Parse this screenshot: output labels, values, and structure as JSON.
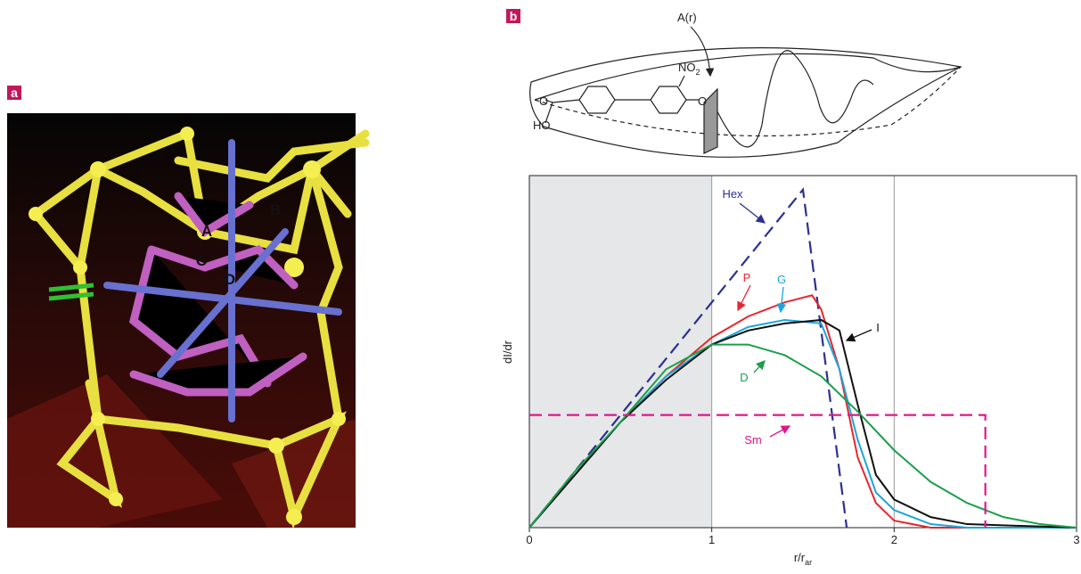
{
  "panel_a": {
    "label": "a",
    "sites": [
      "A",
      "B",
      "C",
      "D"
    ]
  },
  "panel_b": {
    "label": "b",
    "molecule": {
      "section_label": "A(r)",
      "nitro": {
        "main": "NO",
        "subscript": "2"
      },
      "ether_oxygen": "O",
      "carbonyl_oxygen": "O",
      "hydroxyl": "HO"
    },
    "chart_data": {
      "type": "line",
      "ylabel": "dI/dr",
      "xlabel": {
        "main": "r/r",
        "subscript": "ar"
      },
      "xlim": [
        0,
        3
      ],
      "ylim": [
        0,
        1
      ],
      "xticks": [
        0,
        1,
        2,
        3
      ],
      "grid": true,
      "shaded_xrange": [
        0,
        1
      ],
      "series": [
        {
          "name": "Hex",
          "color": "#2b3190",
          "style": "dashed",
          "x": [
            0,
            1.5,
            1.74
          ],
          "values": [
            0,
            0.96,
            0
          ]
        },
        {
          "name": "P",
          "color": "#e8262b",
          "style": "solid",
          "x": [
            0,
            0.25,
            0.5,
            0.75,
            1,
            1.2,
            1.4,
            1.55,
            1.6,
            1.7,
            1.8,
            1.9,
            2,
            2.2,
            3
          ],
          "values": [
            0,
            0.15,
            0.3,
            0.43,
            0.54,
            0.6,
            0.64,
            0.66,
            0.62,
            0.45,
            0.2,
            0.07,
            0.02,
            0,
            0
          ]
        },
        {
          "name": "G",
          "color": "#1aa6dc",
          "style": "solid",
          "x": [
            0,
            0.25,
            0.5,
            0.75,
            1,
            1.2,
            1.4,
            1.6,
            1.7,
            1.8,
            1.9,
            2,
            2.2,
            2.4,
            3
          ],
          "values": [
            0,
            0.15,
            0.3,
            0.43,
            0.52,
            0.57,
            0.59,
            0.58,
            0.45,
            0.25,
            0.1,
            0.05,
            0.01,
            0,
            0
          ]
        },
        {
          "name": "I",
          "color": "#111111",
          "style": "solid",
          "x": [
            0,
            0.25,
            0.5,
            0.75,
            1,
            1.2,
            1.4,
            1.6,
            1.7,
            1.8,
            1.9,
            2,
            2.2,
            2.4,
            3
          ],
          "values": [
            0,
            0.15,
            0.3,
            0.42,
            0.52,
            0.56,
            0.58,
            0.59,
            0.56,
            0.35,
            0.15,
            0.08,
            0.03,
            0.01,
            0
          ]
        },
        {
          "name": "D",
          "color": "#1aa04a",
          "style": "solid",
          "x": [
            0,
            0.25,
            0.5,
            0.6,
            0.75,
            1,
            1.2,
            1.4,
            1.6,
            1.8,
            2,
            2.2,
            2.4,
            2.6,
            2.8,
            3
          ],
          "values": [
            0,
            0.16,
            0.3,
            0.36,
            0.45,
            0.52,
            0.52,
            0.49,
            0.43,
            0.33,
            0.22,
            0.13,
            0.07,
            0.03,
            0.01,
            0
          ]
        },
        {
          "name": "Sm",
          "color": "#e0168c",
          "style": "dashed",
          "x": [
            0,
            2.5,
            2.5
          ],
          "values": [
            0.32,
            0.32,
            0
          ]
        }
      ]
    }
  }
}
